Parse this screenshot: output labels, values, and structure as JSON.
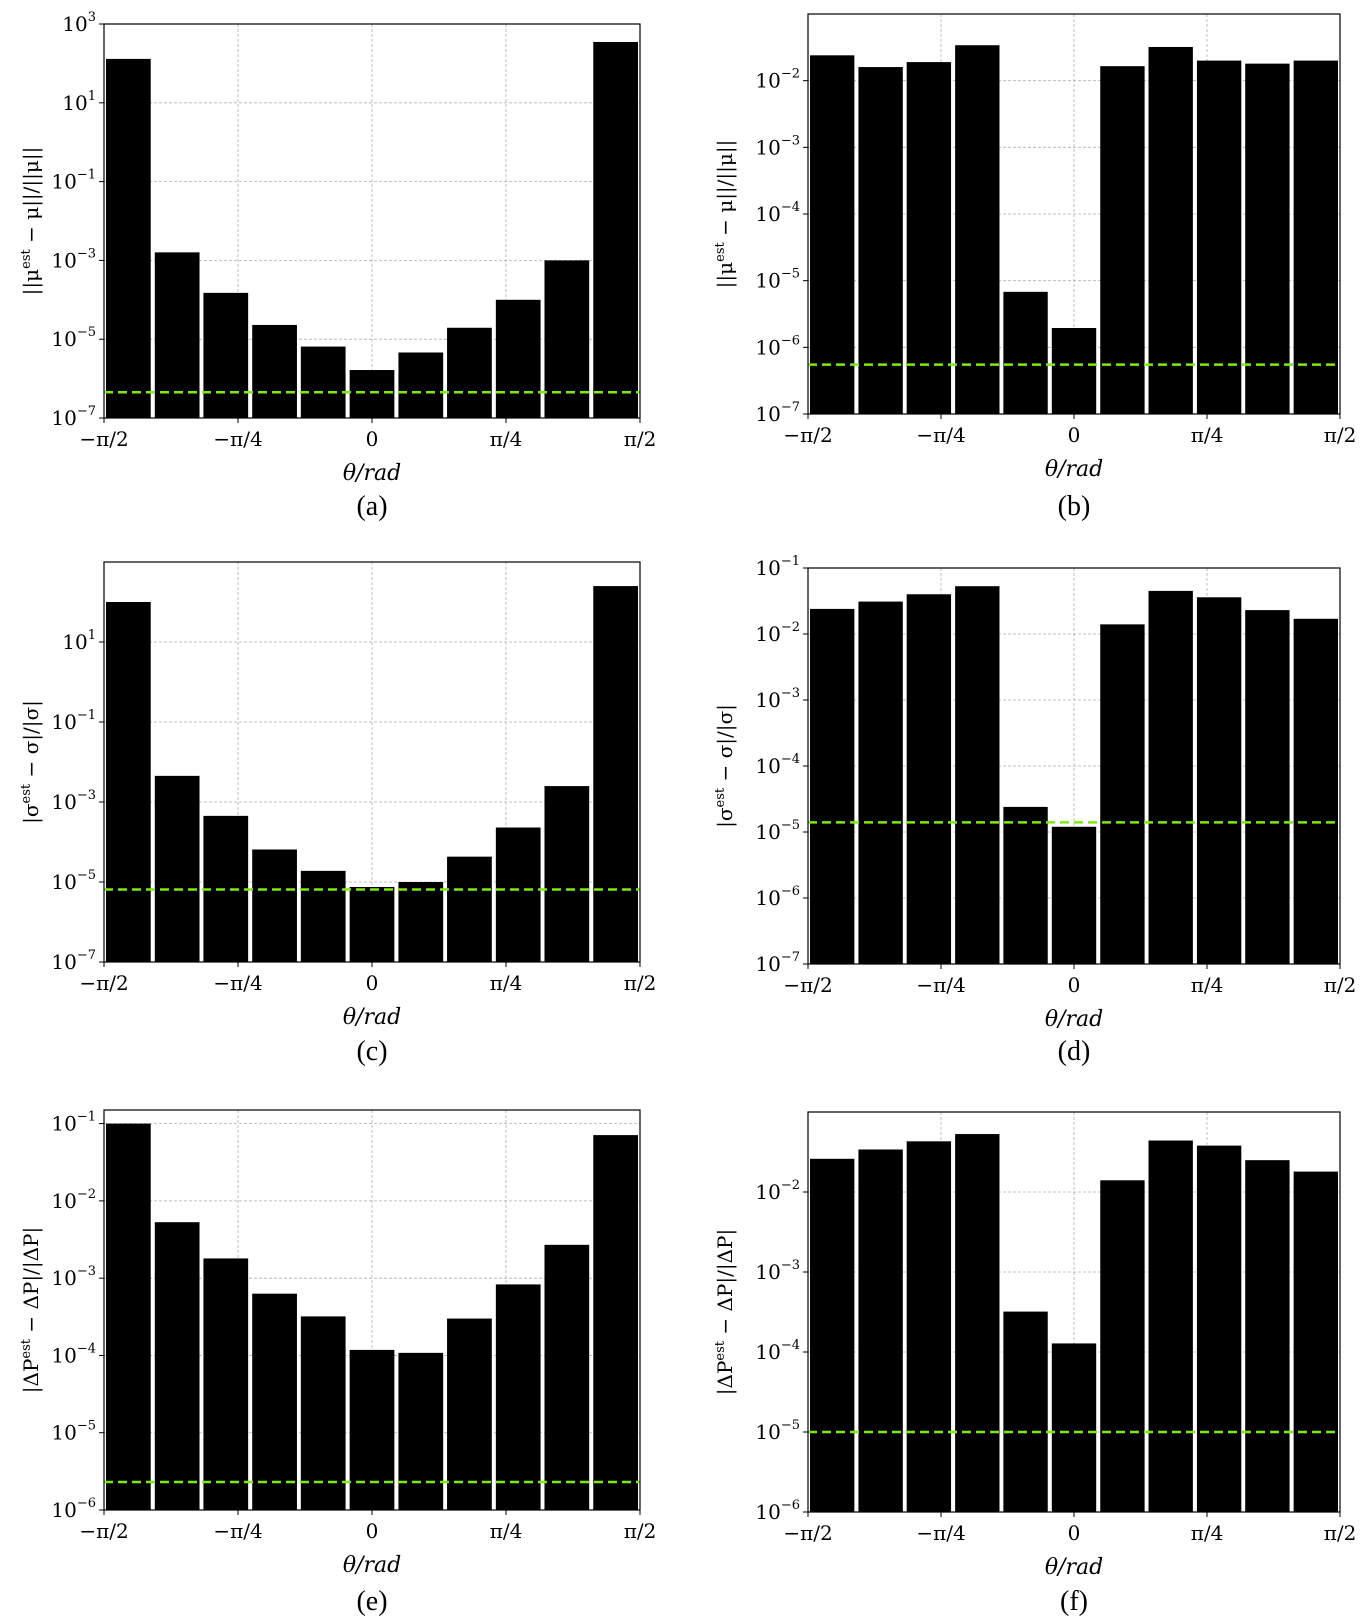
{
  "chart_data": [
    {
      "type": "bar",
      "panel": "(a)",
      "caption": "(a)",
      "ylabel": "||μ^est − μ||/||μ||",
      "xlabel": "θ/rad",
      "yscale": "log",
      "ylim": [
        1e-07,
        1000
      ],
      "xlim": [
        -1.5708,
        1.5708
      ],
      "xticks": [
        "−π/2",
        "−π/4",
        "0",
        "π/4",
        "π/2"
      ],
      "yticks": [
        "10^-7",
        "10^-5",
        "10^-3",
        "10^-1",
        "10^1",
        "10^3"
      ],
      "x": [
        -1.428,
        -1.142,
        -0.857,
        -0.571,
        -0.286,
        0.0,
        0.286,
        0.571,
        0.857,
        1.142,
        1.428
      ],
      "values": [
        130,
        0.0016,
        0.00015,
        2.3e-05,
        6.5e-06,
        1.65e-06,
        4.6e-06,
        1.95e-05,
        0.0001,
        0.001,
        350
      ],
      "reference_line": 4.5e-07,
      "reference_color": "#7fe817",
      "bar_color": "#000000",
      "grid": true
    },
    {
      "type": "bar",
      "panel": "(b)",
      "caption": "(b)",
      "ylabel": "||μ^est − μ||/||μ||",
      "xlabel": "θ/rad",
      "yscale": "log",
      "ylim": [
        1e-07,
        0.1
      ],
      "xlim": [
        -1.5708,
        1.5708
      ],
      "xticks": [
        "−π/2",
        "−π/4",
        "0",
        "π/4",
        "π/2"
      ],
      "yticks": [
        "10^-7",
        "10^-6",
        "10^-5",
        "10^-4",
        "10^-3",
        "10^-2"
      ],
      "x": [
        -1.428,
        -1.142,
        -0.857,
        -0.571,
        -0.286,
        0.0,
        0.286,
        0.571,
        0.857,
        1.142,
        1.428
      ],
      "values": [
        0.024,
        0.016,
        0.019,
        0.034,
        6.8e-06,
        1.95e-06,
        0.0165,
        0.032,
        0.02,
        0.018,
        0.02
      ],
      "reference_line": 5.5e-07,
      "reference_color": "#7fe817",
      "bar_color": "#000000",
      "grid": true
    },
    {
      "type": "bar",
      "panel": "(c)",
      "caption": "(c)",
      "ylabel": "|σ^est − σ|/|σ|",
      "xlabel": "θ/rad",
      "yscale": "log",
      "ylim": [
        1e-07,
        1000
      ],
      "xlim": [
        -1.5708,
        1.5708
      ],
      "xticks": [
        "−π/2",
        "−π/4",
        "0",
        "π/4",
        "π/2"
      ],
      "yticks": [
        "10^-7",
        "10^-5",
        "10^-3",
        "10^-1",
        "10^1"
      ],
      "x": [
        -1.428,
        -1.142,
        -0.857,
        -0.571,
        -0.286,
        0.0,
        0.286,
        0.571,
        0.857,
        1.142,
        1.428
      ],
      "values": [
        100,
        0.0045,
        0.00045,
        6.5e-05,
        1.9e-05,
        7.5e-06,
        1e-05,
        4.3e-05,
        0.00023,
        0.0025,
        250
      ],
      "reference_line": 6.5e-06,
      "reference_color": "#7fe817",
      "bar_color": "#000000",
      "grid": true
    },
    {
      "type": "bar",
      "panel": "(d)",
      "caption": "(d)",
      "ylabel": "|σ^est − σ|/|σ|",
      "xlabel": "θ/rad",
      "yscale": "log",
      "ylim": [
        1e-07,
        0.1
      ],
      "xlim": [
        -1.5708,
        1.5708
      ],
      "xticks": [
        "−π/2",
        "−π/4",
        "0",
        "π/4",
        "π/2"
      ],
      "yticks": [
        "10^-7",
        "10^-6",
        "10^-5",
        "10^-4",
        "10^-3",
        "10^-2",
        "10^-1"
      ],
      "x": [
        -1.428,
        -1.142,
        -0.857,
        -0.571,
        -0.286,
        0.0,
        0.286,
        0.571,
        0.857,
        1.142,
        1.428
      ],
      "values": [
        0.024,
        0.031,
        0.04,
        0.053,
        2.4e-05,
        1.2e-05,
        0.014,
        0.045,
        0.036,
        0.023,
        0.017
      ],
      "reference_line": 1.4e-05,
      "reference_color": "#7fe817",
      "bar_color": "#000000",
      "grid": true
    },
    {
      "type": "bar",
      "panel": "(e)",
      "caption": "(e)",
      "ylabel": "|ΔP^est − ΔP|/|ΔP|",
      "xlabel": "θ/rad",
      "yscale": "log",
      "ylim": [
        1e-06,
        0.15
      ],
      "xlim": [
        -1.5708,
        1.5708
      ],
      "xticks": [
        "−π/2",
        "−π/4",
        "0",
        "π/4",
        "π/2"
      ],
      "yticks": [
        "10^-6",
        "10^-5",
        "10^-4",
        "10^-3",
        "10^-2",
        "10^-1"
      ],
      "x": [
        -1.428,
        -1.142,
        -0.857,
        -0.571,
        -0.286,
        0.0,
        0.286,
        0.571,
        0.857,
        1.142,
        1.428
      ],
      "values": [
        0.1,
        0.0053,
        0.0018,
        0.00063,
        0.00032,
        0.000118,
        0.000108,
        0.0003,
        0.00083,
        0.0027,
        0.071
      ],
      "reference_line": 2.3e-06,
      "reference_color": "#7fe817",
      "bar_color": "#000000",
      "grid": true
    },
    {
      "type": "bar",
      "panel": "(f)",
      "caption": "(f)",
      "ylabel": "|ΔP^est − ΔP|/|ΔP|",
      "xlabel": "θ/rad",
      "yscale": "log",
      "ylim": [
        1e-06,
        0.1
      ],
      "xlim": [
        -1.5708,
        1.5708
      ],
      "xticks": [
        "−π/2",
        "−π/4",
        "0",
        "π/4",
        "π/2"
      ],
      "yticks": [
        "10^-6",
        "10^-5",
        "10^-4",
        "10^-3",
        "10^-2"
      ],
      "x": [
        -1.428,
        -1.142,
        -0.857,
        -0.571,
        -0.286,
        0.0,
        0.286,
        0.571,
        0.857,
        1.142,
        1.428
      ],
      "values": [
        0.026,
        0.034,
        0.043,
        0.053,
        0.00032,
        0.000128,
        0.014,
        0.044,
        0.038,
        0.025,
        0.018
      ],
      "reference_line": 1e-05,
      "reference_color": "#7fe817",
      "bar_color": "#000000",
      "grid": true
    }
  ]
}
